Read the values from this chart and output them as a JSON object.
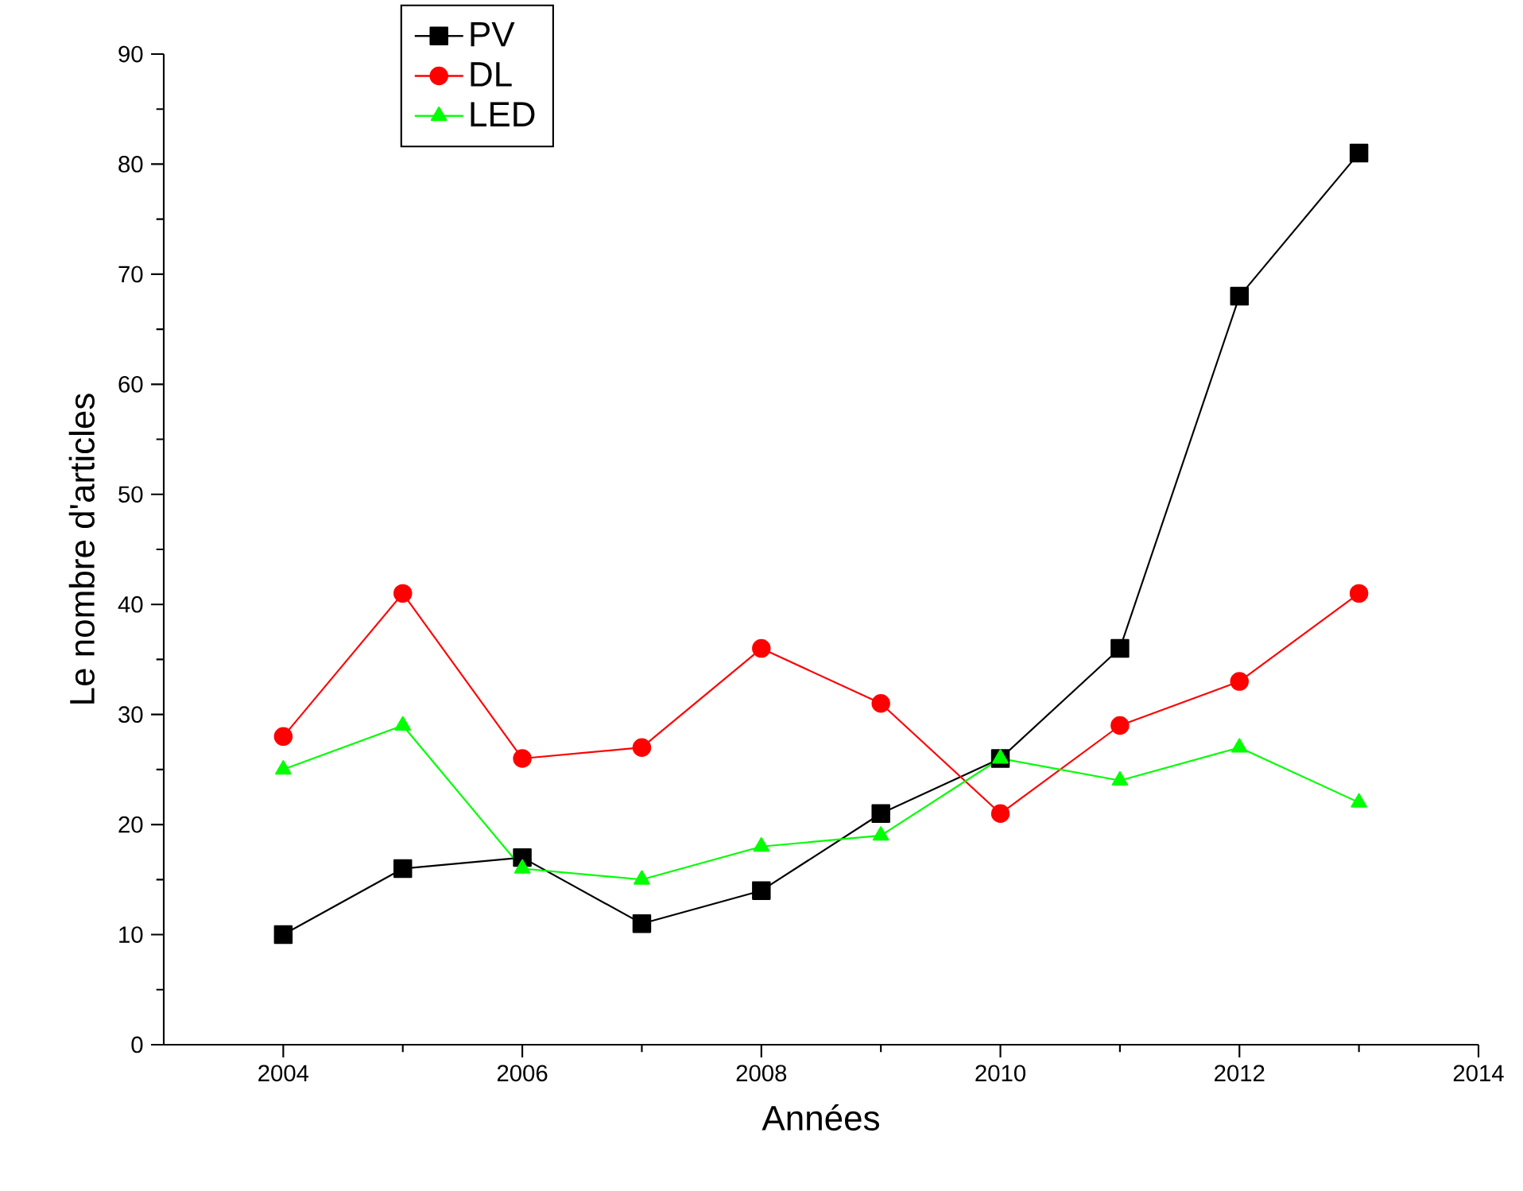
{
  "chart_data": {
    "type": "line",
    "xlabel": "Années",
    "ylabel": "Le nombre d'articles",
    "x": [
      2004,
      2005,
      2006,
      2007,
      2008,
      2009,
      2010,
      2011,
      2012,
      2013
    ],
    "series": [
      {
        "name": "PV",
        "color": "#000000",
        "marker": "square",
        "values": [
          10,
          16,
          17,
          11,
          14,
          21,
          26,
          36,
          68,
          81
        ]
      },
      {
        "name": "DL",
        "color": "#ff0000",
        "marker": "circle",
        "values": [
          28,
          41,
          26,
          27,
          36,
          31,
          21,
          29,
          33,
          41
        ]
      },
      {
        "name": "LED",
        "color": "#00ff00",
        "marker": "triangle",
        "values": [
          25,
          29,
          16,
          15,
          18,
          19,
          26,
          24,
          27,
          22
        ]
      }
    ],
    "xlim": [
      2003,
      2014
    ],
    "xticks": [
      2004,
      2006,
      2008,
      2010,
      2012,
      2014
    ],
    "ylim": [
      0,
      90
    ],
    "yticks": [
      0,
      10,
      20,
      30,
      40,
      50,
      60,
      70,
      80,
      90
    ],
    "grid": false,
    "legend": "top left",
    "line_style": "solid"
  }
}
